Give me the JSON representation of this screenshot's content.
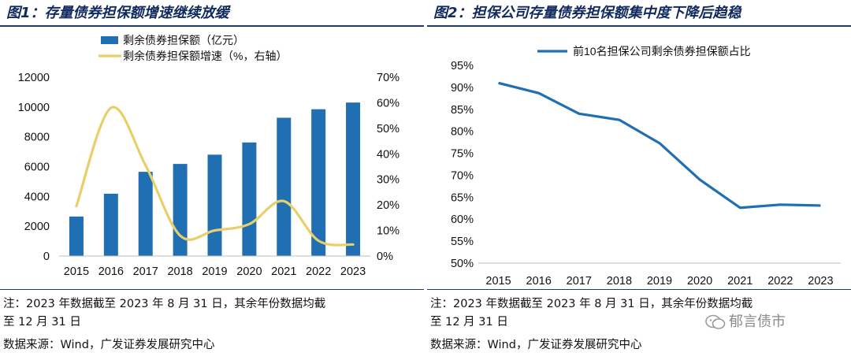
{
  "left": {
    "title": "图1：存量债券担保额增速继续放缓",
    "note_line1": "注：2023 年数据截至 2023 年 8 月 31 日，其余年份数据均截",
    "note_line2": "至 12 月 31 日",
    "source": "数据来源：Wind，广发证券发展研究中心"
  },
  "right": {
    "title": "图2：担保公司存量债券担保额集中度下降后趋稳",
    "note_line1": "注：2023 年数据截至 2023 年 8 月 31 日，其余年份数据均截",
    "note_line2": "至 12 月 31 日",
    "source": "数据来源：Wind，广发证券发展研究中心"
  },
  "watermark": "郁言债市",
  "chart_data": [
    {
      "type": "bar",
      "title": "图1：存量债券担保额增速继续放缓",
      "categories": [
        "2015",
        "2016",
        "2017",
        "2018",
        "2019",
        "2020",
        "2021",
        "2022",
        "2023"
      ],
      "series": [
        {
          "name": "剩余债券担保额（亿元）",
          "type": "bar",
          "axis": "left",
          "values": [
            2650,
            4180,
            5650,
            6180,
            6800,
            7620,
            9280,
            9850,
            10300
          ],
          "color": "#1f6fb2"
        },
        {
          "name": "剩余债券担保额增速（%，右轴）",
          "type": "line",
          "axis": "right",
          "values": [
            19.5,
            58,
            35.5,
            8,
            10,
            12.5,
            21.5,
            6,
            4.5
          ],
          "color": "#e8cf6a"
        }
      ],
      "yleft": {
        "min": 0,
        "max": 12000,
        "ticks": [
          "0",
          "2000",
          "4000",
          "6000",
          "8000",
          "10000",
          "12000"
        ]
      },
      "yright": {
        "min": 0,
        "max": 70,
        "ticks": [
          "0%",
          "10%",
          "20%",
          "30%",
          "40%",
          "50%",
          "60%",
          "70%"
        ]
      },
      "legend": "top-center",
      "grid": false
    },
    {
      "type": "line",
      "title": "图2：担保公司存量债券担保额集中度下降后趋稳",
      "categories": [
        "2015",
        "2016",
        "2017",
        "2018",
        "2019",
        "2020",
        "2021",
        "2022",
        "2023"
      ],
      "series": [
        {
          "name": "前10名担保公司剩余债券担保额占比",
          "values": [
            91,
            88.7,
            84,
            82.6,
            77.3,
            69,
            62.6,
            63.3,
            63.1
          ],
          "color": "#1f6fb2"
        }
      ],
      "y": {
        "min": 50,
        "max": 95,
        "ticks": [
          "50%",
          "55%",
          "60%",
          "65%",
          "70%",
          "75%",
          "80%",
          "85%",
          "90%",
          "95%"
        ]
      },
      "legend": "top-center",
      "grid": false
    }
  ]
}
